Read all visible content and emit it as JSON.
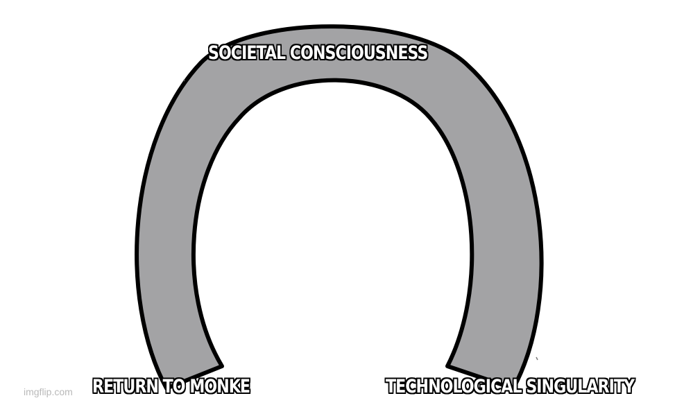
{
  "meme": {
    "captions": {
      "top": "SOCIETAL CONSCIOUSNESS",
      "bottom_left": "RETURN TO MONKE",
      "bottom_right": "TECHNOLOGICAL SINGULARITY"
    },
    "watermark": "imgflip.com"
  },
  "colors": {
    "background": "#ffffff",
    "arch_fill": "#a3a3a5",
    "outline": "#000000",
    "caption_text": "#ffffff"
  }
}
